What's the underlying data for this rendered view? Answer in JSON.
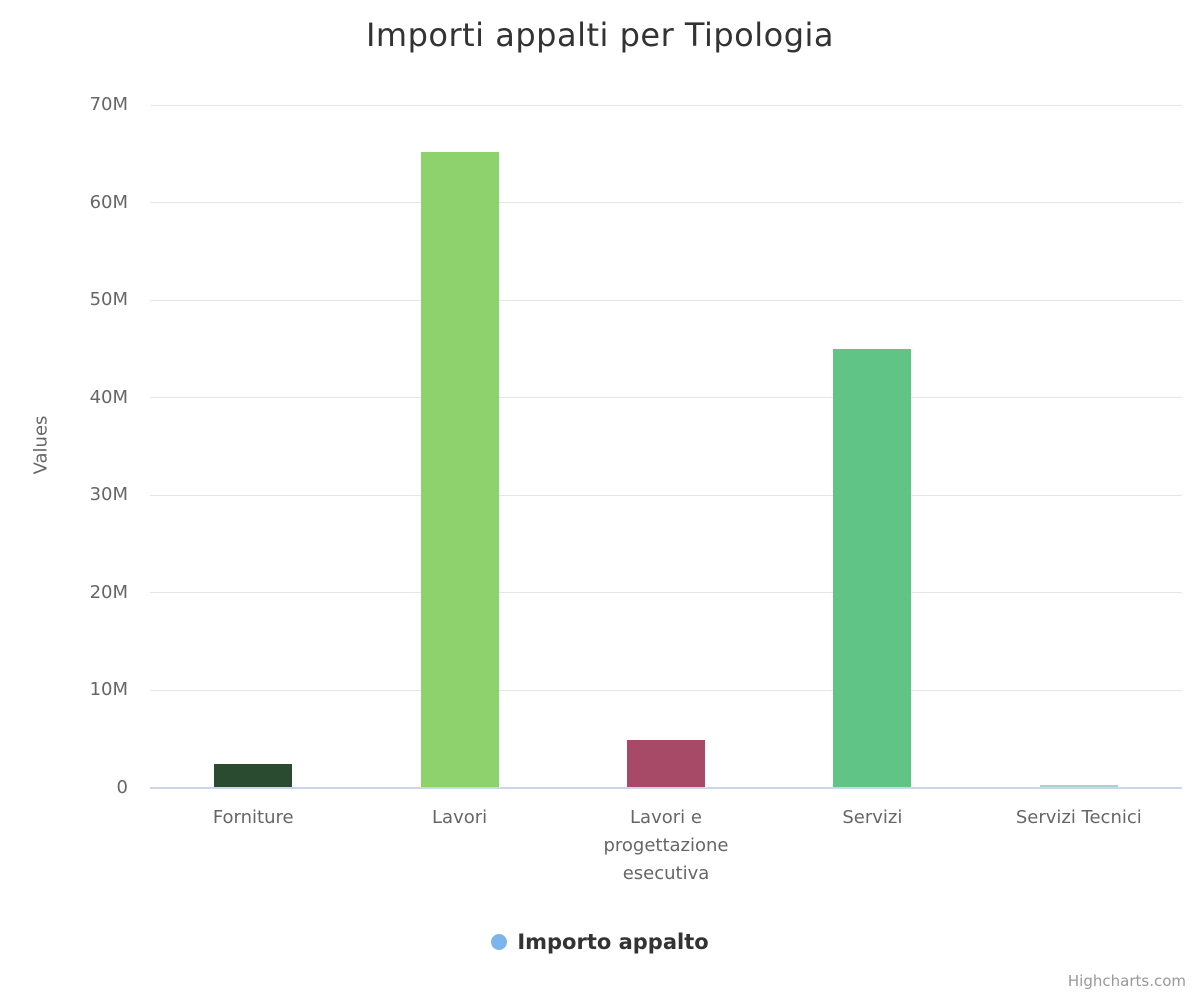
{
  "title": "Importi appalti per Tipologia",
  "y_axis": {
    "title": "Values",
    "tick_labels": [
      "0",
      "10M",
      "20M",
      "30M",
      "40M",
      "50M",
      "60M",
      "70M"
    ],
    "tick_values": [
      0,
      10000000,
      20000000,
      30000000,
      40000000,
      50000000,
      60000000,
      70000000
    ]
  },
  "legend": {
    "label": "Importo appalto",
    "marker_color": "#7cb5ec"
  },
  "credits": "Highcharts.com",
  "chart_data": {
    "type": "bar",
    "title": "Importi appalti per Tipologia",
    "xlabel": "",
    "ylabel": "Values",
    "categories": [
      "Forniture",
      "Lavori",
      "Lavori e progettazione esecutiva",
      "Servizi",
      "Servizi Tecnici"
    ],
    "series": [
      {
        "name": "Importo appalto",
        "values": [
          2500000,
          65200000,
          4900000,
          45000000,
          300000
        ]
      }
    ],
    "point_colors": [
      "#2b4b30",
      "#8ed26e",
      "#a64a67",
      "#61c487",
      "#a3d6c9"
    ],
    "ylim": [
      0,
      70000000
    ],
    "grid": true,
    "legend_position": "bottom",
    "grid_color": "#e6e6e6",
    "axis_line_color": "#ccd6eb"
  }
}
